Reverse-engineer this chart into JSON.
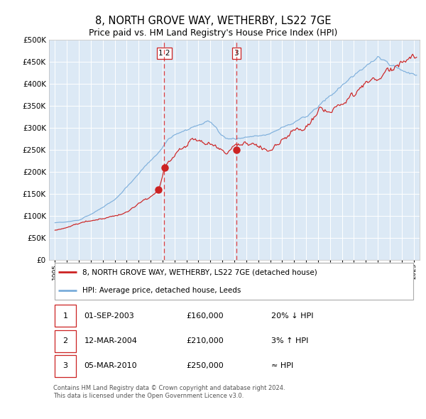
{
  "title": "8, NORTH GROVE WAY, WETHERBY, LS22 7GE",
  "subtitle": "Price paid vs. HM Land Registry's House Price Index (HPI)",
  "legend_entries": [
    "8, NORTH GROVE WAY, WETHERBY, LS22 7GE (detached house)",
    "HPI: Average price, detached house, Leeds"
  ],
  "hpi_color": "#7aaddb",
  "sold_color": "#cc2222",
  "sale_dates_num": [
    2003.667,
    2004.19,
    2010.17
  ],
  "sale_prices": [
    160000,
    210000,
    250000
  ],
  "vline1_x": 2004.15,
  "vline2_x": 2010.17,
  "table_data": [
    [
      "1",
      "01-SEP-2003",
      "£160,000",
      "20% ↓ HPI"
    ],
    [
      "2",
      "12-MAR-2004",
      "£210,000",
      "3% ↑ HPI"
    ],
    [
      "3",
      "05-MAR-2010",
      "£250,000",
      "≈ HPI"
    ]
  ],
  "footer": "Contains HM Land Registry data © Crown copyright and database right 2024.\nThis data is licensed under the Open Government Licence v3.0.",
  "ylim": [
    0,
    500000
  ],
  "yticks": [
    0,
    50000,
    100000,
    150000,
    200000,
    250000,
    300000,
    350000,
    400000,
    450000,
    500000
  ],
  "xlim_start": 1994.5,
  "xlim_end": 2025.5,
  "plot_bg_color": "#dce9f5",
  "grid_color": "#ffffff"
}
